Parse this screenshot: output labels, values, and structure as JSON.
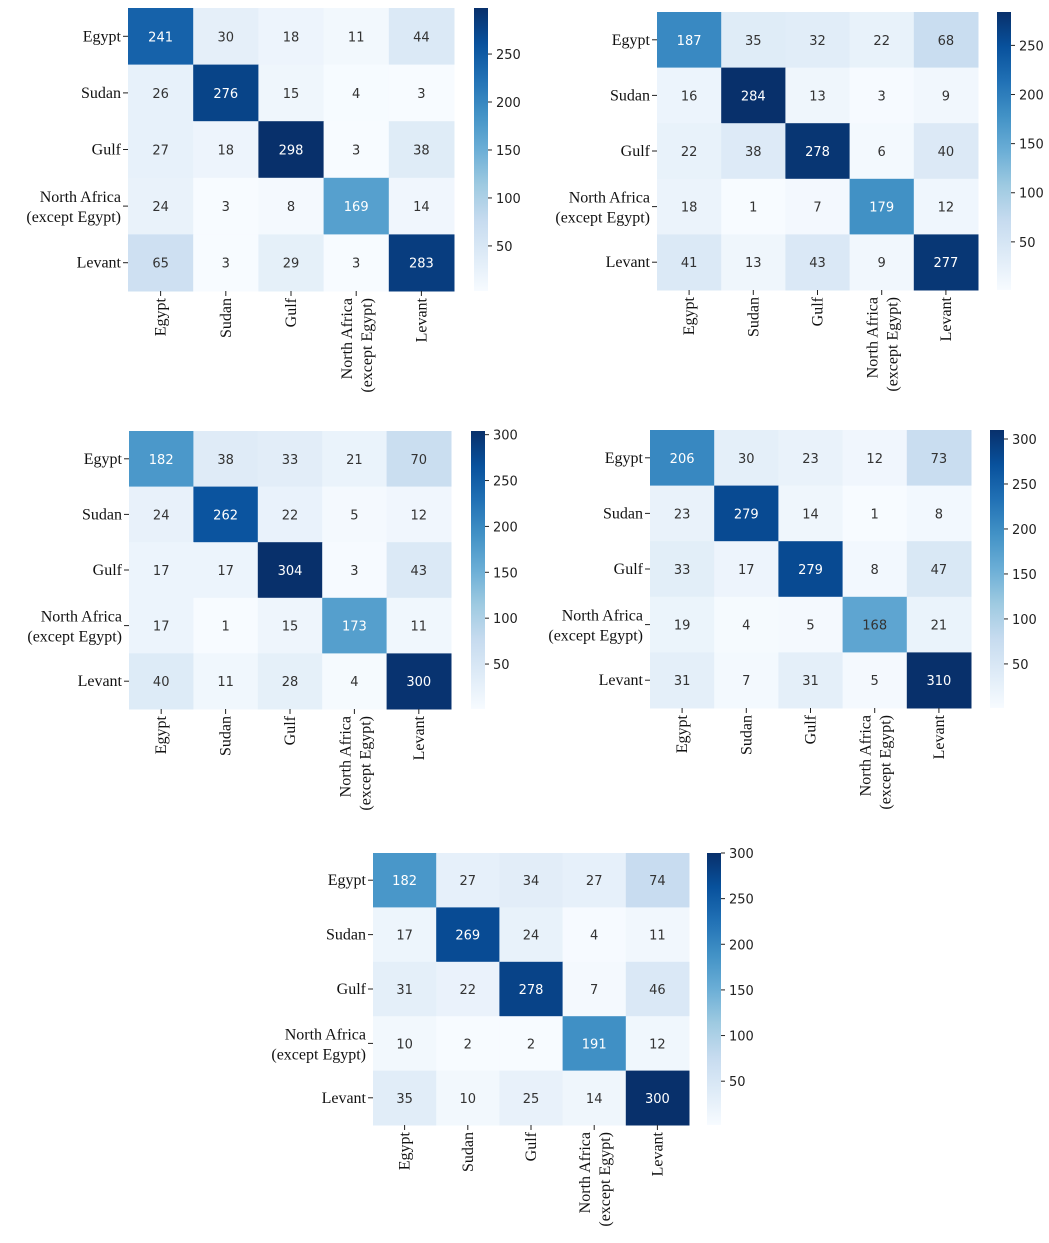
{
  "colors": {
    "colormap": [
      "#f7fbff",
      "#deebf7",
      "#c6dbef",
      "#9ecae1",
      "#6baed6",
      "#4292c6",
      "#2171b5",
      "#08519c",
      "#08306b"
    ],
    "text_dark": "#333333",
    "text_light": "#ffffff"
  },
  "chart_data": [
    {
      "type": "heatmap",
      "categories": [
        "Egypt",
        "Sudan",
        "Gulf",
        "North Africa\n(except Egypt)",
        "Levant"
      ],
      "values": [
        [
          241,
          30,
          18,
          11,
          44
        ],
        [
          26,
          276,
          15,
          4,
          3
        ],
        [
          27,
          18,
          298,
          3,
          38
        ],
        [
          24,
          3,
          8,
          169,
          14
        ],
        [
          65,
          3,
          29,
          3,
          283
        ]
      ],
      "vmin": 3,
      "vmax": 298,
      "colorbar_ticks": [
        50,
        100,
        150,
        200,
        250
      ]
    },
    {
      "type": "heatmap",
      "categories": [
        "Egypt",
        "Sudan",
        "Gulf",
        "North Africa\n(except Egypt)",
        "Levant"
      ],
      "values": [
        [
          187,
          35,
          32,
          22,
          68
        ],
        [
          16,
          284,
          13,
          3,
          9
        ],
        [
          22,
          38,
          278,
          6,
          40
        ],
        [
          18,
          1,
          7,
          179,
          12
        ],
        [
          41,
          13,
          43,
          9,
          277
        ]
      ],
      "vmin": 1,
      "vmax": 284,
      "colorbar_ticks": [
        50,
        100,
        150,
        200,
        250
      ]
    },
    {
      "type": "heatmap",
      "categories": [
        "Egypt",
        "Sudan",
        "Gulf",
        "North Africa\n(except Egypt)",
        "Levant"
      ],
      "values": [
        [
          182,
          38,
          33,
          21,
          70
        ],
        [
          24,
          262,
          22,
          5,
          12
        ],
        [
          17,
          17,
          304,
          3,
          43
        ],
        [
          17,
          1,
          15,
          173,
          11
        ],
        [
          40,
          11,
          28,
          4,
          300
        ]
      ],
      "vmin": 1,
      "vmax": 304,
      "colorbar_ticks": [
        50,
        100,
        150,
        200,
        250,
        300
      ]
    },
    {
      "type": "heatmap",
      "categories": [
        "Egypt",
        "Sudan",
        "Gulf",
        "North Africa\n(except Egypt)",
        "Levant"
      ],
      "values": [
        [
          206,
          30,
          23,
          12,
          73
        ],
        [
          23,
          279,
          14,
          1,
          8
        ],
        [
          33,
          17,
          279,
          8,
          47
        ],
        [
          19,
          4,
          5,
          168,
          21
        ],
        [
          31,
          7,
          31,
          5,
          310
        ]
      ],
      "vmin": 1,
      "vmax": 310,
      "colorbar_ticks": [
        50,
        100,
        150,
        200,
        250,
        300
      ]
    },
    {
      "type": "heatmap",
      "categories": [
        "Egypt",
        "Sudan",
        "Gulf",
        "North Africa\n(except Egypt)",
        "Levant"
      ],
      "values": [
        [
          182,
          27,
          34,
          27,
          74
        ],
        [
          17,
          269,
          24,
          4,
          11
        ],
        [
          31,
          22,
          278,
          7,
          46
        ],
        [
          10,
          2,
          2,
          191,
          12
        ],
        [
          35,
          10,
          25,
          14,
          300
        ]
      ],
      "vmin": 2,
      "vmax": 300,
      "colorbar_ticks": [
        50,
        100,
        150,
        200,
        250,
        300
      ]
    }
  ]
}
